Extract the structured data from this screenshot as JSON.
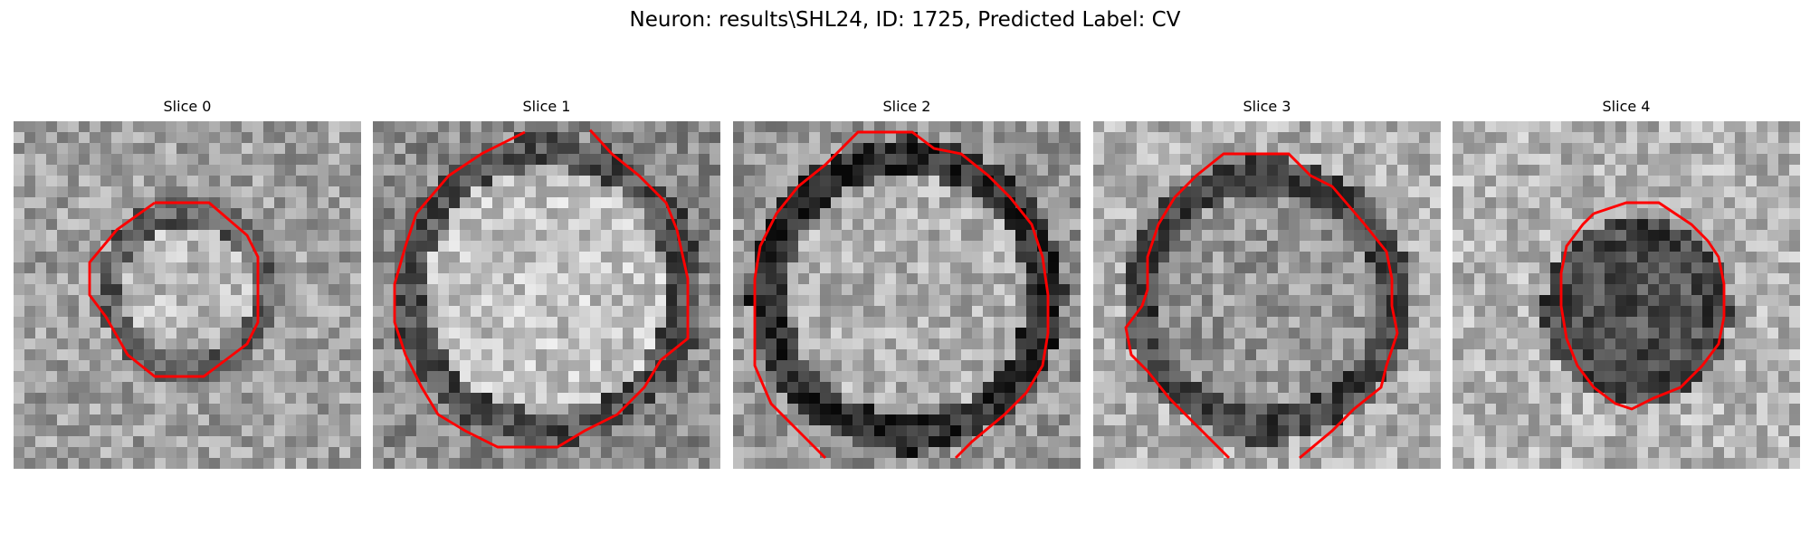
{
  "figure": {
    "title": "Neuron: results\\SHL24, ID: 1725, Predicted Label: CV"
  },
  "panels": [
    {
      "title": "Slice 0",
      "contour_color": "#ff0000"
    },
    {
      "title": "Slice 1",
      "contour_color": "#ff0000"
    },
    {
      "title": "Slice 2",
      "contour_color": "#ff0000"
    },
    {
      "title": "Slice 3",
      "contour_color": "#ff0000"
    },
    {
      "title": "Slice 4",
      "contour_color": "#ff0000"
    }
  ]
}
